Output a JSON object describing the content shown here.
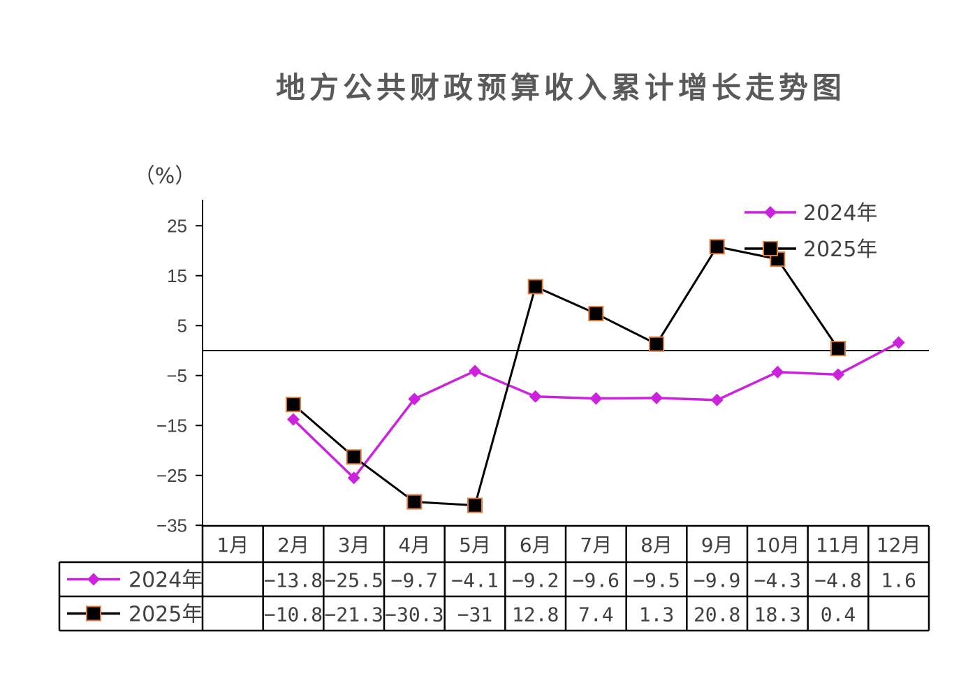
{
  "chart_data": {
    "type": "line",
    "title": "地方公共财政预算收入累计增长走势图",
    "ylabel": "（%）",
    "ylim": [
      -35,
      30
    ],
    "yticks": [
      25,
      15,
      5,
      -5,
      -15,
      -25,
      -35
    ],
    "ytick_labels": [
      "25",
      "15",
      "5",
      "−5",
      "−15",
      "−25",
      "−35"
    ],
    "categories": [
      "1月",
      "2月",
      "3月",
      "4月",
      "5月",
      "6月",
      "7月",
      "8月",
      "9月",
      "10月",
      "11月",
      "12月"
    ],
    "series": [
      {
        "name": "2024年",
        "color": "#cc22dd",
        "marker": "diamond",
        "values": [
          null,
          -13.8,
          -25.5,
          -9.7,
          -4.1,
          -9.2,
          -9.6,
          -9.5,
          -9.9,
          -4.3,
          -4.8,
          1.6
        ],
        "labels": [
          "",
          "−13.8",
          "−25.5",
          "−9.7",
          "−4.1",
          "−9.2",
          "−9.6",
          "−9.5",
          "−9.9",
          "−4.3",
          "−4.8",
          "1.6"
        ]
      },
      {
        "name": "2025年",
        "color": "#000000",
        "marker": "square",
        "marker_edge": "#e07b39",
        "values": [
          null,
          -10.8,
          -21.3,
          -30.3,
          -31,
          12.8,
          7.4,
          1.3,
          20.8,
          18.3,
          0.4,
          null
        ],
        "labels": [
          "",
          "−10.8",
          "−21.3",
          "−30.3",
          "−31",
          "12.8",
          "7.4",
          "1.3",
          "20.8",
          "18.3",
          "0.4",
          ""
        ]
      }
    ],
    "legend_position": "top-right",
    "data_table": true
  }
}
